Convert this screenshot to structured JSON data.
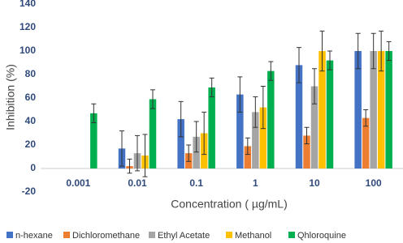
{
  "chart_data": {
    "type": "bar",
    "x_label": "Concentration ( µg/mL)",
    "y_label": "Inhibition (%)",
    "categories": [
      "0.001",
      "0.01",
      "0.1",
      "1",
      "10",
      "100"
    ],
    "series": [
      {
        "name": "n-hexane",
        "color": "#4472c4",
        "values": [
          0,
          17,
          42,
          63,
          88,
          100
        ],
        "errors": [
          0,
          15,
          15,
          15,
          15,
          15
        ]
      },
      {
        "name": "Dichloromethane",
        "color": "#ed7d31",
        "values": [
          0,
          2,
          13,
          19,
          28,
          43
        ],
        "errors": [
          0,
          6,
          7,
          7,
          7,
          7
        ]
      },
      {
        "name": "Ethyl Acetate",
        "color": "#a5a5a5",
        "values": [
          0,
          13,
          27,
          48,
          70,
          100
        ],
        "errors": [
          0,
          15,
          13,
          13,
          15,
          15
        ]
      },
      {
        "name": "Methanol",
        "color": "#ffc000",
        "values": [
          0,
          11,
          30,
          52,
          100,
          100
        ],
        "errors": [
          0,
          18,
          18,
          18,
          17,
          17
        ]
      },
      {
        "name": "Qhloroquine",
        "color": "#00b050",
        "values": [
          47,
          59,
          69,
          83,
          92,
          100
        ],
        "errors": [
          8,
          8,
          8,
          8,
          8,
          8
        ]
      }
    ],
    "ylim": [
      -20,
      140
    ],
    "yticks": [
      -20,
      0,
      20,
      40,
      60,
      80,
      100,
      120,
      140
    ],
    "grid": false,
    "legend": "bottom"
  }
}
